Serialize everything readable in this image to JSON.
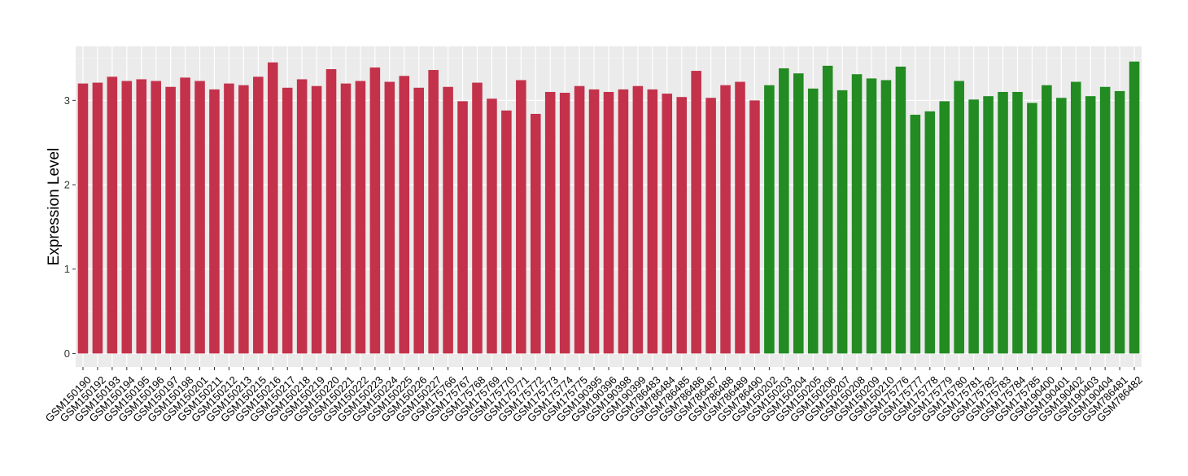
{
  "chart_data": {
    "type": "bar",
    "title": "",
    "xlabel": "",
    "ylabel": "Expression Level",
    "ylim": [
      -0.16,
      3.64
    ],
    "yticks": [
      0,
      1,
      2,
      3
    ],
    "grid": true,
    "legend": "none",
    "series": [
      {
        "color": "#C3324A",
        "categories": [
          "GSM150190",
          "GSM150192",
          "GSM150193",
          "GSM150194",
          "GSM150195",
          "GSM150196",
          "GSM150197",
          "GSM150198",
          "GSM150201",
          "GSM150211",
          "GSM150212",
          "GSM150213",
          "GSM150215",
          "GSM150216",
          "GSM150217",
          "GSM150218",
          "GSM150219",
          "GSM150220",
          "GSM150221",
          "GSM150222",
          "GSM150223",
          "GSM150224",
          "GSM150225",
          "GSM150226",
          "GSM150227",
          "GSM175766",
          "GSM175767",
          "GSM175768",
          "GSM175769",
          "GSM175770",
          "GSM175771",
          "GSM175772",
          "GSM175773",
          "GSM175774",
          "GSM175775",
          "GSM190395",
          "GSM190396",
          "GSM190398",
          "GSM190399",
          "GSM786483",
          "GSM786484",
          "GSM786485",
          "GSM786486",
          "GSM786487",
          "GSM786488",
          "GSM786489",
          "GSM786490"
        ],
        "values": [
          3.2,
          3.21,
          3.28,
          3.23,
          3.25,
          3.23,
          3.16,
          3.27,
          3.23,
          3.13,
          3.2,
          3.18,
          3.28,
          3.45,
          3.15,
          3.25,
          3.17,
          3.37,
          3.2,
          3.23,
          3.39,
          3.22,
          3.29,
          3.15,
          3.36,
          3.16,
          2.99,
          3.21,
          3.02,
          2.88,
          3.24,
          2.84,
          3.1,
          3.09,
          3.17,
          3.13,
          3.1,
          3.13,
          3.17,
          3.13,
          3.08,
          3.04,
          3.35,
          3.03,
          3.18,
          3.22,
          3.0
        ]
      },
      {
        "color": "#228B22",
        "categories": [
          "GSM150202",
          "GSM150203",
          "GSM150204",
          "GSM150205",
          "GSM150206",
          "GSM150207",
          "GSM150208",
          "GSM150209",
          "GSM150210",
          "GSM175776",
          "GSM175777",
          "GSM175778",
          "GSM175779",
          "GSM175780",
          "GSM175781",
          "GSM175782",
          "GSM175783",
          "GSM175784",
          "GSM175785",
          "GSM190400",
          "GSM190401",
          "GSM190402",
          "GSM190403",
          "GSM190404",
          "GSM786481",
          "GSM786482"
        ],
        "values": [
          3.18,
          3.38,
          3.32,
          3.14,
          3.41,
          3.12,
          3.31,
          3.26,
          3.24,
          3.4,
          2.83,
          2.87,
          2.99,
          3.23,
          3.01,
          3.05,
          3.1,
          3.1,
          2.97,
          3.18,
          3.03,
          3.22,
          3.05,
          3.16,
          3.11,
          3.46
        ]
      }
    ]
  }
}
